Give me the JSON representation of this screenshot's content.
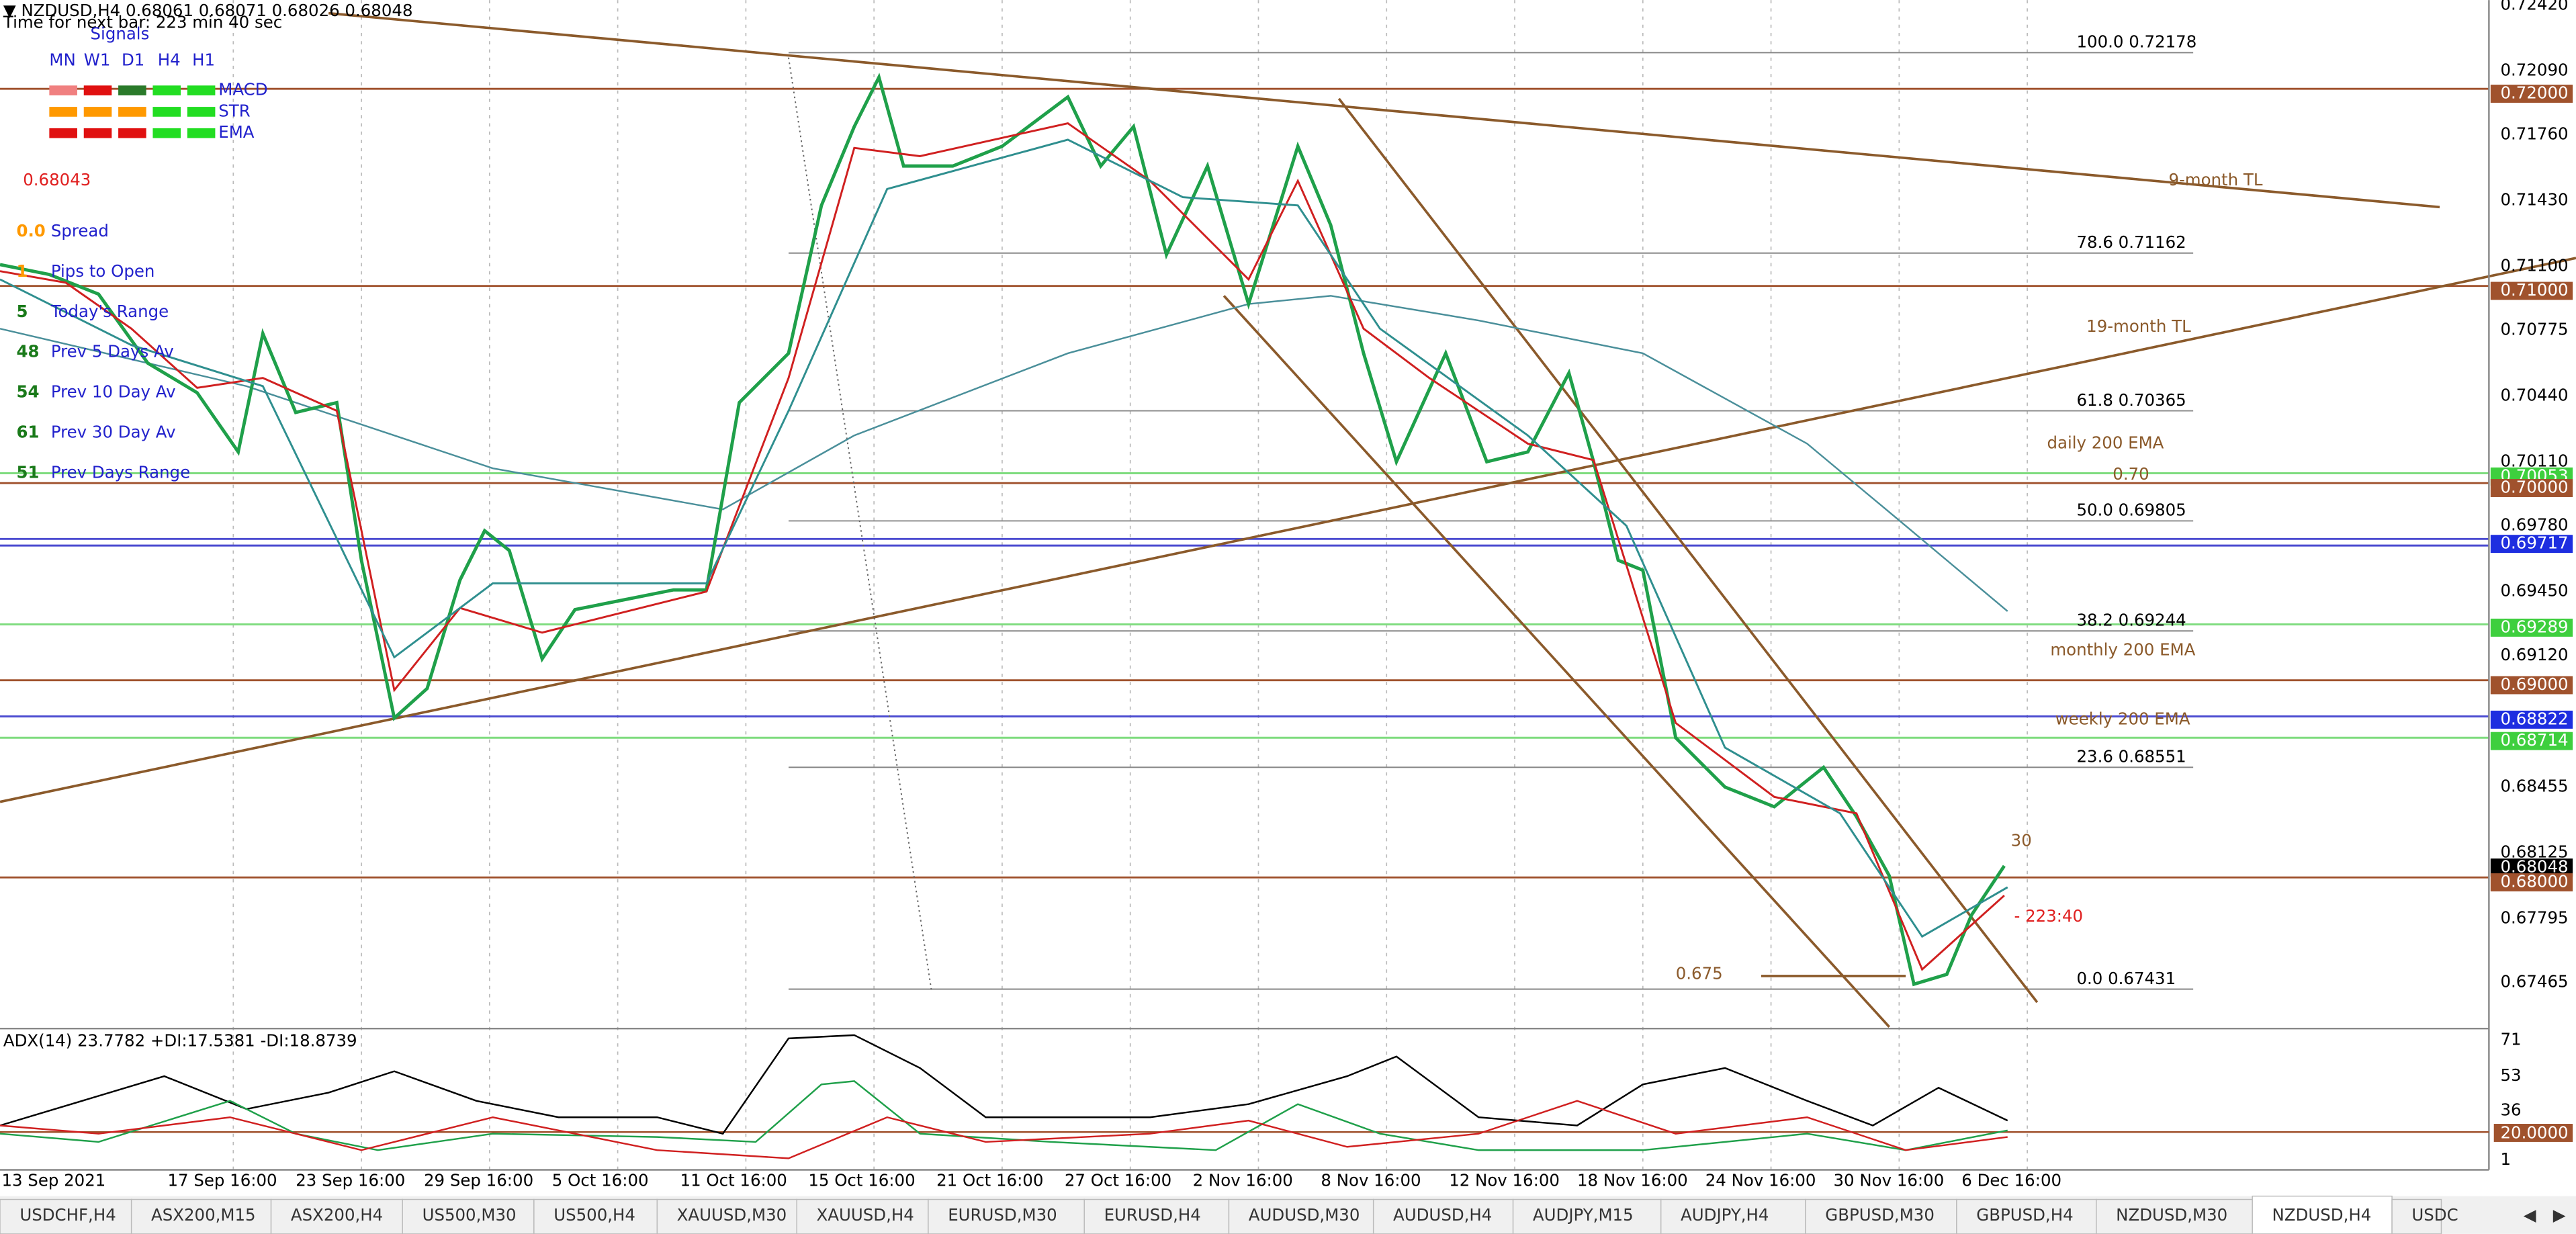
{
  "header": {
    "symbol_line": "▼ NZDUSD,H4  0.68061 0.68071 0.68026 0.68048",
    "timer": "Time for next bar: 223 min 40 sec"
  },
  "signals": {
    "title": "Signals",
    "timeframes": [
      "MN",
      "W1",
      "D1",
      "H4",
      "H1"
    ],
    "indicators": [
      "MACD",
      "STR",
      "EMA"
    ]
  },
  "price_display": "0.68043",
  "info_rows": [
    [
      "0.0",
      "Spread"
    ],
    [
      "1",
      "Pips to Open"
    ],
    [
      "5",
      "Today's Range"
    ],
    [
      "48",
      "Prev 5 Days Av"
    ],
    [
      "54",
      "Prev 10 Day Av"
    ],
    [
      "61",
      "Prev 30 Day Av"
    ],
    [
      "51",
      "Prev Days Range"
    ]
  ],
  "price_axis": [
    "0.72420",
    "0.72090",
    "0.71760",
    "0.71430",
    "0.71100",
    "0.70775",
    "0.70440",
    "0.70110",
    "0.69780",
    "0.69450",
    "0.69120",
    "0.68455",
    "0.68125",
    "0.67795",
    "0.67465"
  ],
  "level_boxes": [
    "0.72000",
    "0.71000",
    "0.70053",
    "0.70000",
    "0.69717",
    "0.69289",
    "0.69000",
    "0.68822",
    "0.68714",
    "0.68048",
    "0.68000"
  ],
  "fib_levels": [
    "100.0  0.72178",
    "78.6  0.71162",
    "61.8  0.70365",
    "50.0  0.69805",
    "38.2  0.69244",
    "23.6  0.68551",
    "0.0  0.67431"
  ],
  "annotations": [
    "9-month TL",
    "19-month TL",
    "daily 200 EMA",
    "0.70",
    "monthly 200 EMA",
    "weekly 200 EMA",
    "30",
    "- 223:40",
    "0.675"
  ],
  "adx": {
    "header": "ADX(14) 23.7782 +DI:17.5381 -DI:18.8739",
    "axis": [
      "71",
      "53",
      "36",
      "1"
    ],
    "level_box": "20.0000"
  },
  "date_axis": [
    "13 Sep 2021",
    "17 Sep 16:00",
    "23 Sep 16:00",
    "29 Sep 16:00",
    "5 Oct 16:00",
    "11 Oct 16:00",
    "15 Oct 16:00",
    "21 Oct 16:00",
    "27 Oct 16:00",
    "2 Nov 16:00",
    "8 Nov 16:00",
    "12 Nov 16:00",
    "18 Nov 16:00",
    "24 Nov 16:00",
    "30 Nov 16:00",
    "6 Dec 16:00"
  ],
  "tabs": [
    "USDCHF,H4",
    "ASX200,M15",
    "ASX200,H4",
    "US500,M30",
    "US500,H4",
    "XAUUSD,M30",
    "XAUUSD,H4",
    "EURUSD,M30",
    "EURUSD,H4",
    "AUDUSD,M30",
    "AUDUSD,H4",
    "AUDJPY,M15",
    "AUDJPY,H4",
    "GBPUSD,M30",
    "GBPUSD,H4",
    "NZDUSD,M30",
    "NZDUSD,H4",
    "USDC"
  ]
}
